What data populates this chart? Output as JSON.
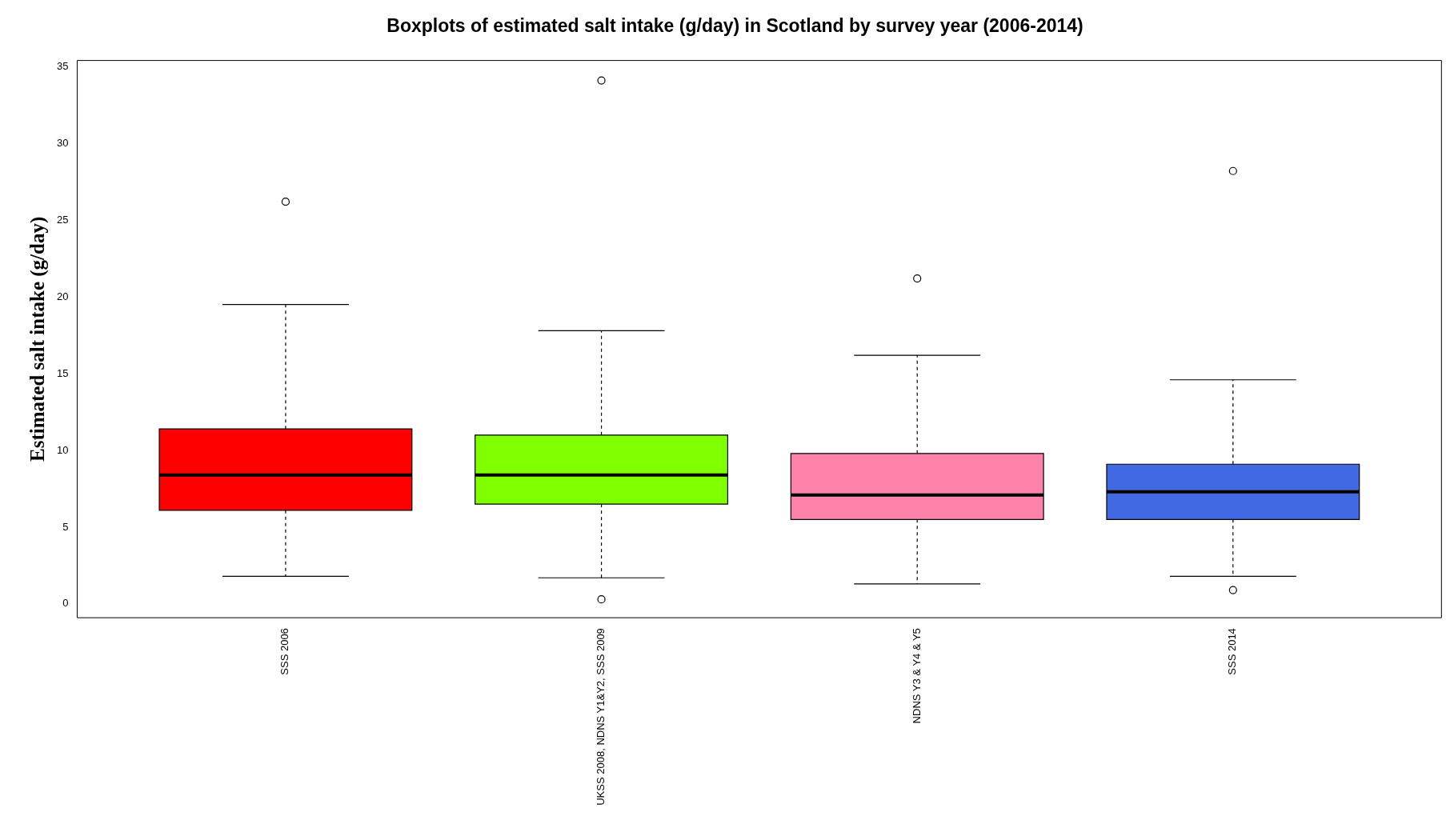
{
  "chart_data": {
    "type": "box",
    "title": "Boxplots of estimated salt intake (g/day) in Scotland by survey year (2006-2014)",
    "ylabel": "Estimated salt intake (g/day)",
    "categories": [
      "SSS 2006",
      "UKSS 2008, NDNS Y1&Y2, SSS 2009",
      "NDNS Y3 & Y4 & Y5",
      "SSS 2014"
    ],
    "colors": [
      "#ff0000",
      "#7fff00",
      "#ff82ab",
      "#4169e1"
    ],
    "boxes": [
      {
        "low": 1.8,
        "q1": 6.1,
        "median": 8.4,
        "q3": 11.4,
        "high": 19.5,
        "outliers": [
          26.2
        ]
      },
      {
        "low": 1.7,
        "q1": 6.5,
        "median": 8.4,
        "q3": 11.0,
        "high": 17.8,
        "outliers": [
          34.1,
          0.3
        ]
      },
      {
        "low": 1.3,
        "q1": 5.5,
        "median": 7.1,
        "q3": 9.8,
        "high": 16.2,
        "outliers": [
          21.2
        ]
      },
      {
        "low": 1.8,
        "q1": 5.5,
        "median": 7.3,
        "q3": 9.1,
        "high": 14.6,
        "outliers": [
          28.2,
          0.9
        ]
      }
    ],
    "ylim": [
      -0.9,
      35.4
    ],
    "yticks": [
      0,
      5,
      10,
      15,
      20,
      25,
      30,
      35
    ]
  }
}
